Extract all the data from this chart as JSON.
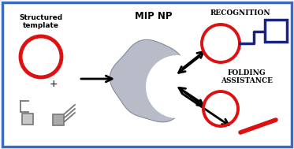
{
  "background_color": "#ffffff",
  "border_color": "#3a6bc4",
  "red_color": "#dd1111",
  "blue_color": "#1a237e",
  "gray_fill": "#b8bcc8",
  "gray_edge": "#888899",
  "arrow_color": "#111111",
  "mono_color": "#777777",
  "mono_fill": "#bbbbbb",
  "text_structured": "Structured\ntemplate",
  "text_mip": "MIP NP",
  "text_recognition": "Recognition",
  "text_folding": "Folding\nAssistance"
}
